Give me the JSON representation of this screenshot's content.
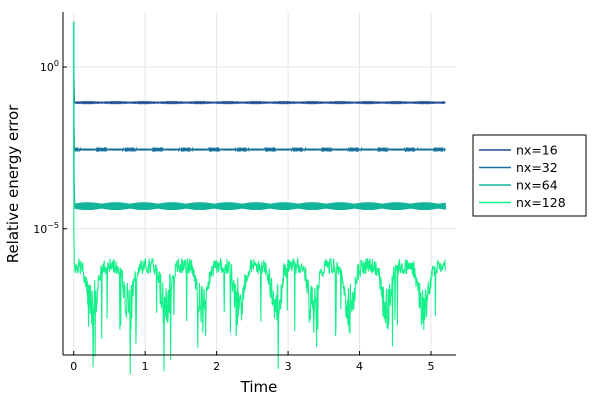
{
  "chart_data": {
    "type": "line",
    "title": "",
    "xlabel": "Time",
    "ylabel": "Relative energy error",
    "xlim": [
      -0.15,
      5.35
    ],
    "ylim_log10": [
      -8.9,
      1.7
    ],
    "yscale": "log10",
    "grid": true,
    "legend_placement": "right",
    "x_ticks": [
      {
        "value": 0,
        "label": "0"
      },
      {
        "value": 1,
        "label": "1"
      },
      {
        "value": 2,
        "label": "2"
      },
      {
        "value": 3,
        "label": "3"
      },
      {
        "value": 4,
        "label": "4"
      },
      {
        "value": 5,
        "label": "5"
      }
    ],
    "y_ticks": [
      {
        "value": 1,
        "base": "10",
        "exp": "0"
      },
      {
        "value": 1e-05,
        "base": "10",
        "exp": "−5"
      }
    ],
    "series": [
      {
        "name": "nx=16",
        "color": "#1f4e96",
        "start_log10": 1.4,
        "level_log10": -1.1,
        "amp_log10": 0.015,
        "t_end": 5.2
      },
      {
        "name": "nx=32",
        "color": "#176f9c",
        "start_log10": 1.4,
        "level_log10": -2.55,
        "amp_log10": 0.03,
        "t_end": 5.2
      },
      {
        "name": "nx=64",
        "color": "#12b49a",
        "start_log10": 1.4,
        "level_log10": -4.3,
        "amp_log10": 0.12,
        "t_end": 5.2
      },
      {
        "name": "nx=128",
        "color": "#14f08a",
        "start_log10": 1.4,
        "level_log10": -6.15,
        "amp_log10": 0.35,
        "t_end": 5.2
      }
    ]
  }
}
